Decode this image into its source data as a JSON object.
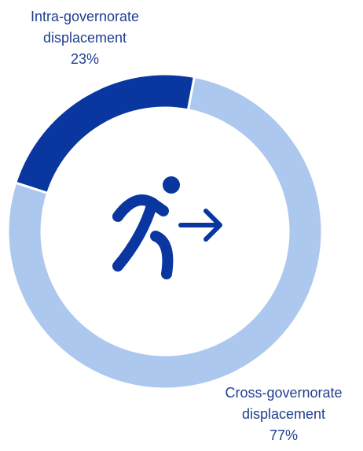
{
  "chart_data": {
    "type": "pie",
    "variant": "donut",
    "categories": [
      "Intra-governorate displacement",
      "Cross-governorate displacement"
    ],
    "values": [
      23,
      77
    ],
    "unit": "%",
    "colors": [
      "#0a36a0",
      "#adc8ee"
    ],
    "center_icon": "person-walking-with-arrow-icon"
  },
  "labels": {
    "intra": {
      "line1": "Intra-governorate",
      "line2": "displacement",
      "value": "23%"
    },
    "cross": {
      "line1": "Cross-governorate",
      "line2": "displacement",
      "value": "77%"
    }
  },
  "colors": {
    "label_text": "#1f3f8f",
    "icon": "#0a36a0"
  }
}
